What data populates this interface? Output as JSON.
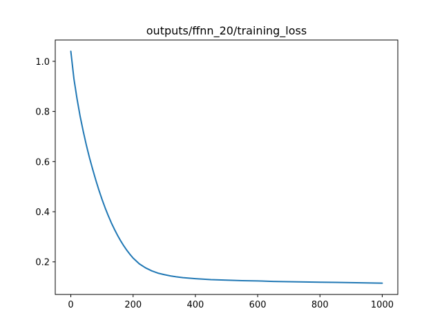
{
  "chart_data": {
    "type": "line",
    "title": "outputs/ffnn_20/training_loss",
    "xlabel": "",
    "ylabel": "",
    "xlim": [
      -50,
      1050
    ],
    "ylim": [
      0.07,
      1.085
    ],
    "xticks": [
      0,
      200,
      400,
      600,
      800,
      1000
    ],
    "xtick_labels": [
      "0",
      "200",
      "400",
      "600",
      "800",
      "1000"
    ],
    "yticks": [
      0.2,
      0.4,
      0.6,
      0.8,
      1.0
    ],
    "ytick_labels": [
      "0.2",
      "0.4",
      "0.6",
      "0.8",
      "1.0"
    ],
    "grid": false,
    "series": [
      {
        "color": "#1f77b4",
        "x": [
          0,
          10,
          20,
          30,
          40,
          50,
          60,
          70,
          80,
          90,
          100,
          110,
          120,
          130,
          140,
          150,
          160,
          170,
          180,
          190,
          200,
          220,
          240,
          260,
          280,
          300,
          320,
          340,
          360,
          380,
          400,
          450,
          500,
          550,
          600,
          650,
          700,
          750,
          800,
          850,
          900,
          950,
          1000
        ],
        "y": [
          1.04,
          0.93,
          0.85,
          0.78,
          0.72,
          0.665,
          0.615,
          0.57,
          0.527,
          0.487,
          0.45,
          0.416,
          0.385,
          0.356,
          0.33,
          0.306,
          0.284,
          0.264,
          0.246,
          0.23,
          0.215,
          0.192,
          0.176,
          0.164,
          0.155,
          0.149,
          0.144,
          0.14,
          0.137,
          0.135,
          0.133,
          0.129,
          0.127,
          0.125,
          0.124,
          0.122,
          0.121,
          0.12,
          0.119,
          0.118,
          0.117,
          0.116,
          0.115
        ]
      }
    ]
  }
}
